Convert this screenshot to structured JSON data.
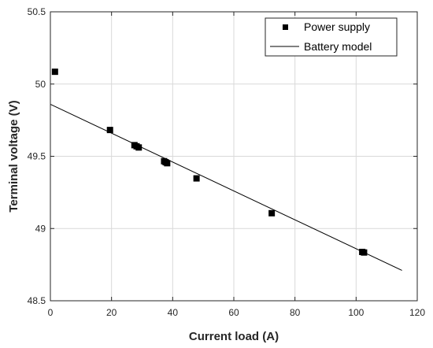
{
  "chart_data": {
    "type": "scatter",
    "xlabel": "Current load (A)",
    "ylabel": "Terminal voltage (V)",
    "xlim": [
      0,
      120
    ],
    "ylim": [
      48.5,
      50.5
    ],
    "xticks": [
      0,
      20,
      40,
      60,
      80,
      100,
      120
    ],
    "yticks": [
      48.5,
      49,
      49.5,
      50,
      50.5
    ],
    "xtick_labels": [
      "0",
      "20",
      "40",
      "60",
      "80",
      "100",
      "120"
    ],
    "ytick_labels": [
      "48.5",
      "49",
      "49.5",
      "50",
      "50.5"
    ],
    "grid": true,
    "legend_position": "top-right",
    "series": [
      {
        "name": "Power supply",
        "kind": "markers",
        "marker": "square",
        "color": "#000000",
        "x": [
          1.5,
          19.5,
          27.5,
          28.2,
          28.9,
          37.2,
          37.7,
          38.2,
          47.8,
          72.4,
          102.0,
          102.6
        ],
        "y": [
          50.085,
          49.682,
          49.577,
          49.569,
          49.561,
          49.466,
          49.459,
          49.452,
          49.347,
          49.106,
          48.838,
          48.834
        ]
      },
      {
        "name": "Battery model",
        "kind": "line",
        "color": "#000000",
        "x": [
          0,
          115
        ],
        "y": [
          49.86,
          48.71
        ]
      }
    ]
  }
}
